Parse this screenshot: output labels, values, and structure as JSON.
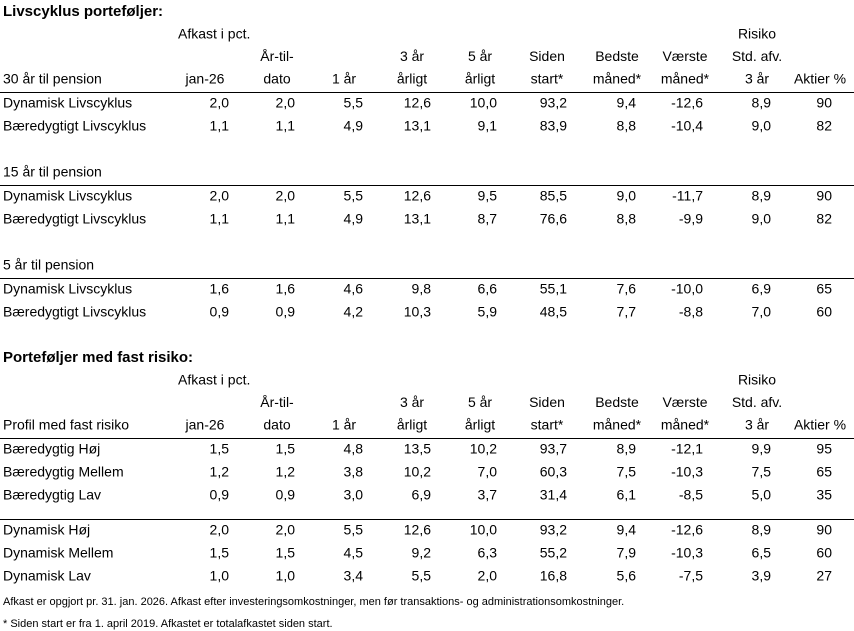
{
  "sections": [
    {
      "title": "Livscyklus porteføljer:",
      "header": {
        "afkast": "Afkast i pct.",
        "risiko": "Risiko",
        "columns": [
          [
            "30 år til pension"
          ],
          [
            "jan-26"
          ],
          [
            "År-til-",
            "dato"
          ],
          [
            "1 år"
          ],
          [
            "3 år",
            "årligt"
          ],
          [
            "5 år",
            "årligt"
          ],
          [
            "Siden",
            "start*"
          ],
          [
            "Bedste",
            "måned*"
          ],
          [
            "Værste",
            "måned*"
          ],
          [
            "Std. afv.",
            "3 år"
          ],
          [
            "Aktier %"
          ]
        ]
      },
      "groups": [
        {
          "rows": [
            {
              "name": "Dynamisk Livscyklus",
              "values": [
                "2,0",
                "2,0",
                "5,5",
                "12,6",
                "10,0",
                "93,2",
                "9,4",
                "-12,6",
                "8,9",
                "90"
              ]
            },
            {
              "name": "Bæredygtigt Livscyklus",
              "values": [
                "1,1",
                "1,1",
                "4,9",
                "13,1",
                "9,1",
                "83,9",
                "8,8",
                "-10,4",
                "9,0",
                "82"
              ]
            }
          ]
        },
        {
          "label": "15 år til pension",
          "rows": [
            {
              "name": "Dynamisk Livscyklus",
              "values": [
                "2,0",
                "2,0",
                "5,5",
                "12,6",
                "9,5",
                "85,5",
                "9,0",
                "-11,7",
                "8,9",
                "90"
              ]
            },
            {
              "name": "Bæredygtigt Livscyklus",
              "values": [
                "1,1",
                "1,1",
                "4,9",
                "13,1",
                "8,7",
                "76,6",
                "8,8",
                "-9,9",
                "9,0",
                "82"
              ]
            }
          ]
        },
        {
          "label": "5 år til pension",
          "rows": [
            {
              "name": "Dynamisk Livscyklus",
              "values": [
                "1,6",
                "1,6",
                "4,6",
                "9,8",
                "6,6",
                "55,1",
                "7,6",
                "-10,0",
                "6,9",
                "65"
              ]
            },
            {
              "name": "Bæredygtigt Livscyklus",
              "values": [
                "0,9",
                "0,9",
                "4,2",
                "10,3",
                "5,9",
                "48,5",
                "7,7",
                "-8,8",
                "7,0",
                "60"
              ]
            }
          ]
        }
      ]
    },
    {
      "title": "Porteføljer med fast risiko:",
      "header": {
        "afkast": "Afkast i pct.",
        "risiko": "Risiko",
        "columns": [
          [
            "Profil med fast risiko"
          ],
          [
            "jan-26"
          ],
          [
            "År-til-",
            "dato"
          ],
          [
            "1 år"
          ],
          [
            "3 år",
            "årligt"
          ],
          [
            "5 år",
            "årligt"
          ],
          [
            "Siden",
            "start*"
          ],
          [
            "Bedste",
            "måned*"
          ],
          [
            "Værste",
            "måned*"
          ],
          [
            "Std. afv.",
            "3 år"
          ],
          [
            "Aktier %"
          ]
        ]
      },
      "groups": [
        {
          "rows": [
            {
              "name": "Bæredygtig Høj",
              "values": [
                "1,5",
                "1,5",
                "4,8",
                "13,5",
                "10,2",
                "93,7",
                "8,9",
                "-12,1",
                "9,9",
                "95"
              ]
            },
            {
              "name": "Bæredygtig Mellem",
              "values": [
                "1,2",
                "1,2",
                "3,8",
                "10,2",
                "7,0",
                "60,3",
                "7,5",
                "-10,3",
                "7,5",
                "65"
              ]
            },
            {
              "name": "Bæredygtig Lav",
              "values": [
                "0,9",
                "0,9",
                "3,0",
                "6,9",
                "3,7",
                "31,4",
                "6,1",
                "-8,5",
                "5,0",
                "35"
              ]
            }
          ]
        },
        {
          "rows": [
            {
              "name": "Dynamisk Høj",
              "values": [
                "2,0",
                "2,0",
                "5,5",
                "12,6",
                "10,0",
                "93,2",
                "9,4",
                "-12,6",
                "8,9",
                "90"
              ]
            },
            {
              "name": "Dynamisk Mellem",
              "values": [
                "1,5",
                "1,5",
                "4,5",
                "9,2",
                "6,3",
                "55,2",
                "7,9",
                "-10,3",
                "6,5",
                "60"
              ]
            },
            {
              "name": "Dynamisk Lav",
              "values": [
                "1,0",
                "1,0",
                "3,4",
                "5,5",
                "2,0",
                "16,8",
                "5,6",
                "-7,5",
                "3,9",
                "27"
              ]
            }
          ]
        }
      ]
    }
  ],
  "footnotes": [
    "Afkast er opgjort pr. 31. jan. 2026. Afkast efter investeringsomkostninger, men før transaktions- og administrationsomkostninger.",
    "* Siden start er fra 1. april 2019. Afkastet er totalafkastet siden start."
  ]
}
